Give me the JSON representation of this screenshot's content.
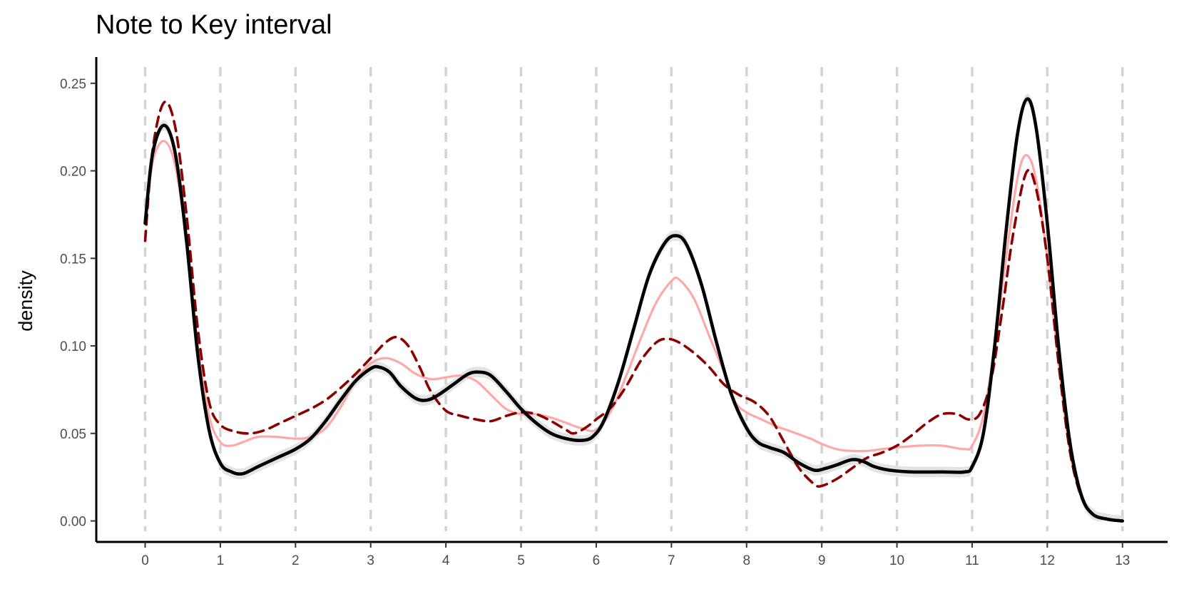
{
  "chart_data": {
    "type": "line",
    "title": "Note to Key interval",
    "xlabel": "",
    "ylabel": "density",
    "xlim": [
      -0.65,
      13.6
    ],
    "ylim": [
      -0.012,
      0.265
    ],
    "x_ticks": [
      0,
      1,
      2,
      3,
      4,
      5,
      6,
      7,
      8,
      9,
      10,
      11,
      12,
      13
    ],
    "y_ticks": [
      0.0,
      0.05,
      0.1,
      0.15,
      0.2,
      0.25
    ],
    "y_tick_labels": [
      "0.00",
      "0.05",
      "0.10",
      "0.15",
      "0.20",
      "0.25"
    ],
    "vertical_reference_lines": [
      0,
      1,
      2,
      3,
      4,
      5,
      6,
      7,
      8,
      9,
      10,
      11,
      12,
      13
    ],
    "grid": false,
    "colors": {
      "reference_line": "#d3d3d3",
      "band": "#e3e3e3",
      "pink": "#ffa8a8",
      "dark_red": "#8b0000",
      "black": "#000000"
    },
    "series": [
      {
        "style": "solid-pink",
        "points": [
          [
            0,
            0.17
          ],
          [
            0.1,
            0.205
          ],
          [
            0.25,
            0.217
          ],
          [
            0.4,
            0.203
          ],
          [
            0.55,
            0.16
          ],
          [
            0.7,
            0.1
          ],
          [
            0.85,
            0.06
          ],
          [
            1.0,
            0.045
          ],
          [
            1.15,
            0.043
          ],
          [
            1.3,
            0.045
          ],
          [
            1.5,
            0.048
          ],
          [
            1.75,
            0.048
          ],
          [
            2.0,
            0.047
          ],
          [
            2.2,
            0.048
          ],
          [
            2.4,
            0.053
          ],
          [
            2.6,
            0.065
          ],
          [
            2.8,
            0.08
          ],
          [
            3.0,
            0.09
          ],
          [
            3.2,
            0.093
          ],
          [
            3.4,
            0.09
          ],
          [
            3.6,
            0.084
          ],
          [
            3.8,
            0.081
          ],
          [
            4.0,
            0.082
          ],
          [
            4.2,
            0.083
          ],
          [
            4.4,
            0.08
          ],
          [
            4.6,
            0.072
          ],
          [
            4.8,
            0.064
          ],
          [
            5.0,
            0.061
          ],
          [
            5.2,
            0.061
          ],
          [
            5.4,
            0.059
          ],
          [
            5.6,
            0.056
          ],
          [
            5.8,
            0.053
          ],
          [
            6.0,
            0.052
          ],
          [
            6.2,
            0.063
          ],
          [
            6.4,
            0.083
          ],
          [
            6.6,
            0.105
          ],
          [
            6.8,
            0.125
          ],
          [
            7.0,
            0.137
          ],
          [
            7.1,
            0.138
          ],
          [
            7.3,
            0.127
          ],
          [
            7.5,
            0.106
          ],
          [
            7.7,
            0.085
          ],
          [
            7.85,
            0.068
          ],
          [
            8.0,
            0.062
          ],
          [
            8.2,
            0.058
          ],
          [
            8.4,
            0.054
          ],
          [
            8.6,
            0.051
          ],
          [
            8.85,
            0.047
          ],
          [
            9.0,
            0.044
          ],
          [
            9.2,
            0.041
          ],
          [
            9.4,
            0.04
          ],
          [
            9.6,
            0.04
          ],
          [
            9.8,
            0.041
          ],
          [
            10.0,
            0.042
          ],
          [
            10.3,
            0.043
          ],
          [
            10.6,
            0.043
          ],
          [
            10.9,
            0.041
          ],
          [
            11.0,
            0.043
          ],
          [
            11.15,
            0.06
          ],
          [
            11.3,
            0.1
          ],
          [
            11.45,
            0.15
          ],
          [
            11.6,
            0.195
          ],
          [
            11.72,
            0.209
          ],
          [
            11.85,
            0.195
          ],
          [
            12.0,
            0.15
          ],
          [
            12.15,
            0.09
          ],
          [
            12.3,
            0.04
          ],
          [
            12.45,
            0.014
          ],
          [
            12.6,
            0.004
          ],
          [
            12.8,
            0.001
          ],
          [
            13.0,
            0.0
          ]
        ]
      },
      {
        "style": "dashed-dark-red",
        "points": [
          [
            0,
            0.16
          ],
          [
            0.1,
            0.212
          ],
          [
            0.25,
            0.239
          ],
          [
            0.4,
            0.225
          ],
          [
            0.55,
            0.175
          ],
          [
            0.7,
            0.11
          ],
          [
            0.85,
            0.068
          ],
          [
            1.0,
            0.055
          ],
          [
            1.2,
            0.051
          ],
          [
            1.4,
            0.05
          ],
          [
            1.6,
            0.052
          ],
          [
            1.8,
            0.056
          ],
          [
            2.0,
            0.06
          ],
          [
            2.2,
            0.064
          ],
          [
            2.4,
            0.069
          ],
          [
            2.6,
            0.076
          ],
          [
            2.8,
            0.084
          ],
          [
            3.0,
            0.093
          ],
          [
            3.2,
            0.102
          ],
          [
            3.35,
            0.105
          ],
          [
            3.5,
            0.1
          ],
          [
            3.65,
            0.088
          ],
          [
            3.8,
            0.074
          ],
          [
            4.0,
            0.063
          ],
          [
            4.2,
            0.06
          ],
          [
            4.4,
            0.058
          ],
          [
            4.6,
            0.057
          ],
          [
            4.8,
            0.06
          ],
          [
            5.0,
            0.062
          ],
          [
            5.2,
            0.061
          ],
          [
            5.4,
            0.057
          ],
          [
            5.6,
            0.052
          ],
          [
            5.7,
            0.05
          ],
          [
            5.85,
            0.053
          ],
          [
            6.0,
            0.058
          ],
          [
            6.2,
            0.065
          ],
          [
            6.4,
            0.077
          ],
          [
            6.6,
            0.092
          ],
          [
            6.8,
            0.102
          ],
          [
            6.95,
            0.104
          ],
          [
            7.1,
            0.102
          ],
          [
            7.3,
            0.096
          ],
          [
            7.5,
            0.088
          ],
          [
            7.7,
            0.078
          ],
          [
            7.9,
            0.072
          ],
          [
            8.1,
            0.068
          ],
          [
            8.3,
            0.06
          ],
          [
            8.5,
            0.045
          ],
          [
            8.7,
            0.03
          ],
          [
            8.9,
            0.021
          ],
          [
            9.0,
            0.02
          ],
          [
            9.2,
            0.024
          ],
          [
            9.4,
            0.03
          ],
          [
            9.6,
            0.036
          ],
          [
            9.8,
            0.039
          ],
          [
            10.0,
            0.043
          ],
          [
            10.2,
            0.049
          ],
          [
            10.4,
            0.056
          ],
          [
            10.6,
            0.061
          ],
          [
            10.8,
            0.061
          ],
          [
            10.95,
            0.058
          ],
          [
            11.1,
            0.061
          ],
          [
            11.25,
            0.08
          ],
          [
            11.4,
            0.12
          ],
          [
            11.55,
            0.165
          ],
          [
            11.72,
            0.199
          ],
          [
            11.85,
            0.19
          ],
          [
            12.0,
            0.15
          ],
          [
            12.15,
            0.09
          ],
          [
            12.3,
            0.04
          ],
          [
            12.45,
            0.014
          ],
          [
            12.6,
            0.004
          ],
          [
            12.8,
            0.001
          ],
          [
            13.0,
            0.0
          ]
        ]
      },
      {
        "style": "solid-black-with-band",
        "band_halfwidth": 0.003,
        "points": [
          [
            0,
            0.17
          ],
          [
            0.1,
            0.21
          ],
          [
            0.25,
            0.226
          ],
          [
            0.4,
            0.21
          ],
          [
            0.55,
            0.16
          ],
          [
            0.7,
            0.095
          ],
          [
            0.85,
            0.052
          ],
          [
            1.0,
            0.033
          ],
          [
            1.15,
            0.028
          ],
          [
            1.3,
            0.027
          ],
          [
            1.5,
            0.031
          ],
          [
            1.75,
            0.036
          ],
          [
            2.0,
            0.041
          ],
          [
            2.2,
            0.047
          ],
          [
            2.4,
            0.057
          ],
          [
            2.6,
            0.069
          ],
          [
            2.8,
            0.08
          ],
          [
            3.0,
            0.087
          ],
          [
            3.1,
            0.088
          ],
          [
            3.25,
            0.085
          ],
          [
            3.4,
            0.077
          ],
          [
            3.6,
            0.07
          ],
          [
            3.75,
            0.069
          ],
          [
            3.9,
            0.072
          ],
          [
            4.1,
            0.078
          ],
          [
            4.3,
            0.084
          ],
          [
            4.45,
            0.085
          ],
          [
            4.6,
            0.083
          ],
          [
            4.8,
            0.074
          ],
          [
            5.0,
            0.064
          ],
          [
            5.2,
            0.056
          ],
          [
            5.4,
            0.05
          ],
          [
            5.6,
            0.047
          ],
          [
            5.8,
            0.046
          ],
          [
            5.95,
            0.048
          ],
          [
            6.1,
            0.057
          ],
          [
            6.3,
            0.08
          ],
          [
            6.5,
            0.11
          ],
          [
            6.7,
            0.14
          ],
          [
            6.9,
            0.158
          ],
          [
            7.05,
            0.163
          ],
          [
            7.2,
            0.158
          ],
          [
            7.4,
            0.135
          ],
          [
            7.6,
            0.102
          ],
          [
            7.8,
            0.072
          ],
          [
            8.0,
            0.053
          ],
          [
            8.15,
            0.045
          ],
          [
            8.3,
            0.042
          ],
          [
            8.5,
            0.039
          ],
          [
            8.7,
            0.033
          ],
          [
            8.9,
            0.029
          ],
          [
            9.05,
            0.03
          ],
          [
            9.2,
            0.032
          ],
          [
            9.4,
            0.035
          ],
          [
            9.55,
            0.034
          ],
          [
            9.7,
            0.031
          ],
          [
            9.9,
            0.029
          ],
          [
            10.2,
            0.028
          ],
          [
            10.6,
            0.028
          ],
          [
            10.9,
            0.028
          ],
          [
            11.0,
            0.031
          ],
          [
            11.15,
            0.05
          ],
          [
            11.3,
            0.1
          ],
          [
            11.45,
            0.165
          ],
          [
            11.6,
            0.22
          ],
          [
            11.73,
            0.241
          ],
          [
            11.85,
            0.225
          ],
          [
            12.0,
            0.17
          ],
          [
            12.15,
            0.1
          ],
          [
            12.3,
            0.045
          ],
          [
            12.45,
            0.015
          ],
          [
            12.6,
            0.004
          ],
          [
            12.8,
            0.001
          ],
          [
            13.0,
            0.0
          ]
        ]
      }
    ]
  }
}
